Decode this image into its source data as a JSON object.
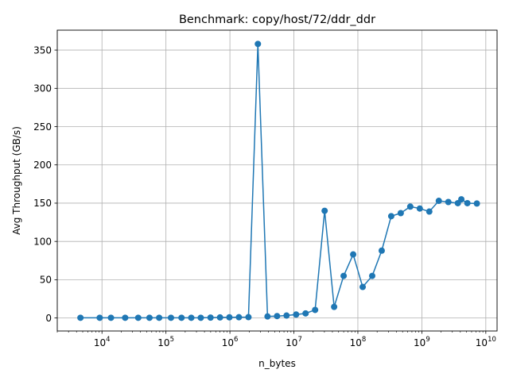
{
  "chart_data": {
    "type": "line",
    "title": "Benchmark: copy/host/72/ddr_ddr",
    "xlabel": "n_bytes",
    "ylabel": "Avg Throughput (GB/s)",
    "xscale": "log",
    "xlim": [
      2000,
      15000000000
    ],
    "ylim": [
      -17,
      376
    ],
    "grid": true,
    "color": "#1f77b4",
    "y_ticks": [
      0,
      50,
      100,
      150,
      200,
      250,
      300,
      350
    ],
    "x_ticks": [
      {
        "base": "10",
        "exp": "4",
        "value": 10000
      },
      {
        "base": "10",
        "exp": "5",
        "value": 100000
      },
      {
        "base": "10",
        "exp": "6",
        "value": 1000000
      },
      {
        "base": "10",
        "exp": "7",
        "value": 10000000
      },
      {
        "base": "10",
        "exp": "8",
        "value": 100000000
      },
      {
        "base": "10",
        "exp": "9",
        "value": 1000000000
      },
      {
        "base": "10",
        "exp": "10",
        "value": 10000000000
      }
    ],
    "series": [
      {
        "x": [
          4608,
          9216,
          13824,
          23040,
          36864,
          55296,
          78336,
          119808,
          175104,
          248832,
          350208,
          497664,
          700416,
          981504,
          1382400,
          1949184,
          2737152,
          3870720,
          5455872,
          7677952,
          10829824,
          15237120,
          21462528,
          30240768,
          42573312,
          59965440,
          84467712,
          118957056,
          167608320,
          236060160,
          332392448,
          468221952,
          659619840,
          929104896,
          1308262400,
          1842651136,
          2595225600,
          3655188480,
          4145086464,
          5145886720,
          7248740352
        ],
        "y": [
          0.3,
          0.3,
          0.3,
          0.3,
          0.3,
          0.3,
          0.3,
          0.3,
          0.3,
          0.3,
          0.3,
          0.5,
          0.7,
          0.9,
          1.0,
          1.1,
          358,
          2.0,
          2.5,
          3.2,
          4.5,
          6.0,
          10.5,
          140,
          14.5,
          55,
          83,
          40.5,
          55,
          88,
          133,
          137,
          145.5,
          143,
          139,
          153,
          151.5,
          150,
          155,
          150,
          149.5
        ]
      }
    ]
  }
}
